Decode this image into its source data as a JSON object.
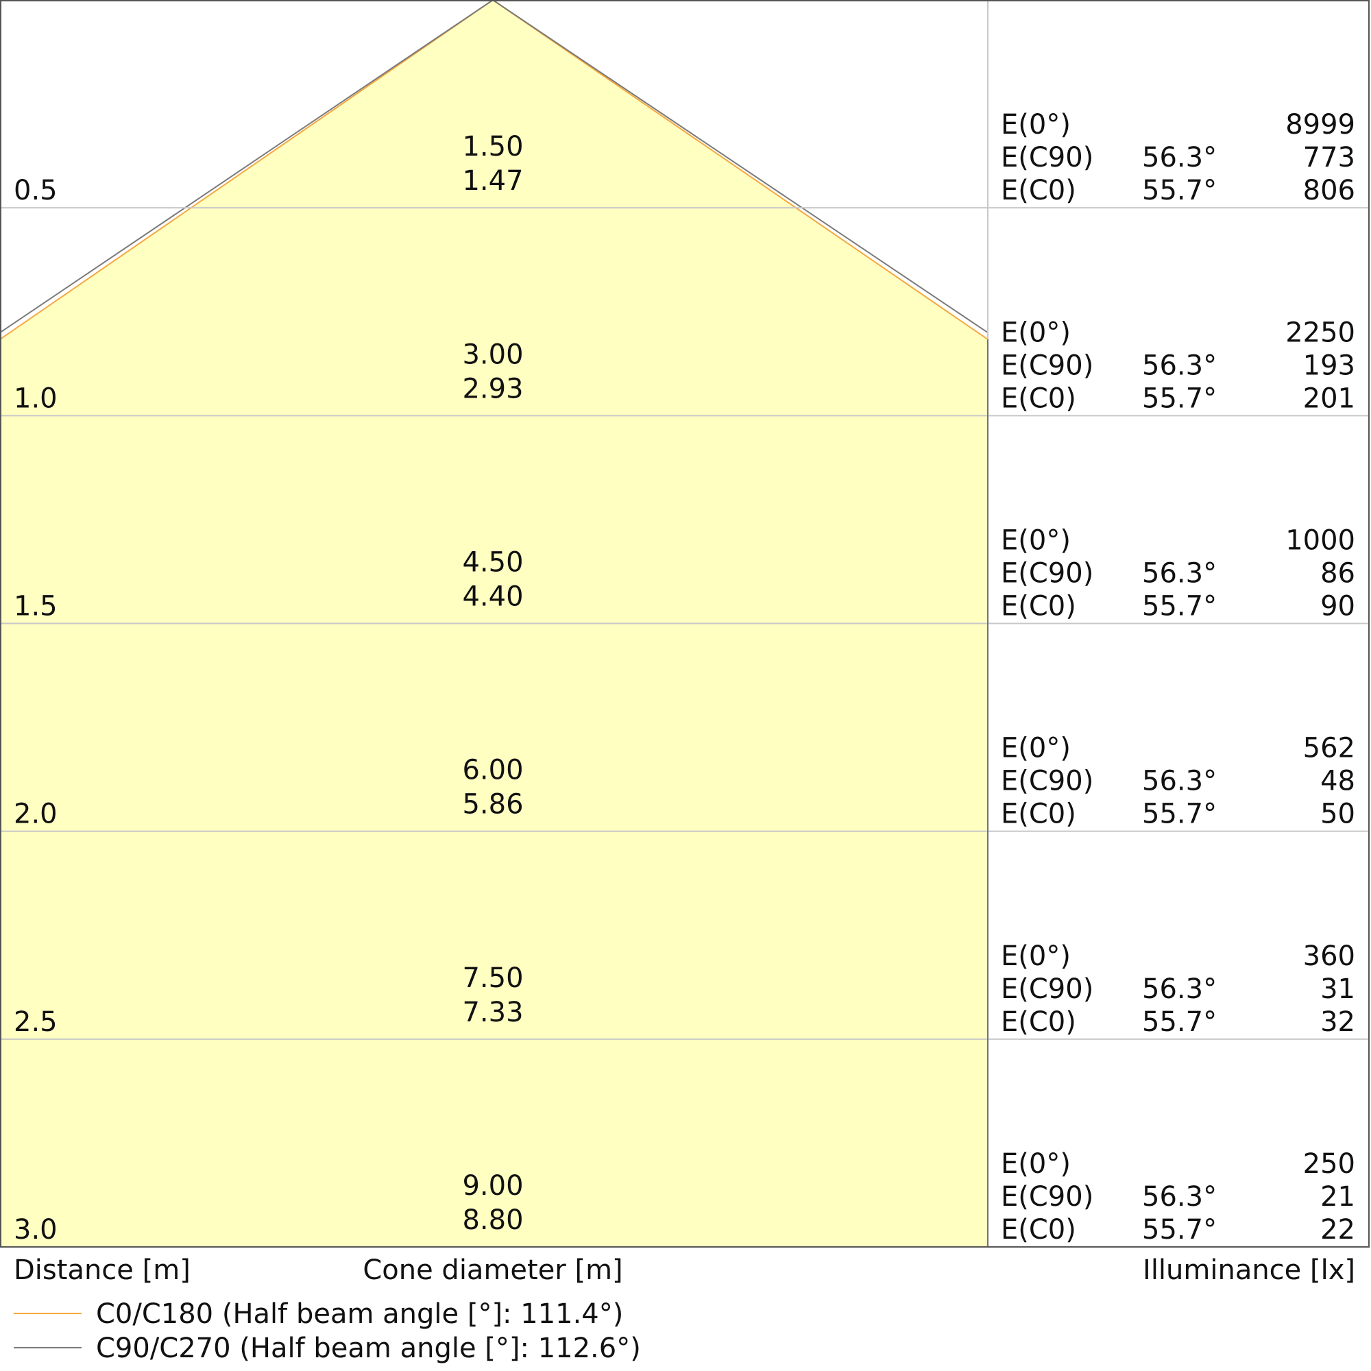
{
  "chart_data": {
    "type": "cone-diagram",
    "xlabel_left": "Distance [m]",
    "xlabel_center": "Cone diameter [m]",
    "xlabel_right": "Illuminance [lx]",
    "colors": {
      "fill": "#ffffc2",
      "c0": "#f5a840",
      "c90": "#7a7a7a",
      "grid": "#c8c8c8",
      "border": "#555555"
    },
    "legend": [
      {
        "name": "C0/C180 (Half beam angle [°]: 111.4°)",
        "color": "#f5a840"
      },
      {
        "name": "C90/C270 (Half beam angle [°]: 112.6°)",
        "color": "#7a7a7a"
      }
    ],
    "label_e0": "E(0°)",
    "label_ec90": "E(C90)",
    "label_ec0": "E(C0)",
    "angle_c90": "56.3°",
    "angle_c0": "55.7°",
    "rows": [
      {
        "distance": "0.5",
        "diam_c90": "1.50",
        "diam_c0": "1.47",
        "e0": "8999",
        "ec90": "773",
        "ec0": "806"
      },
      {
        "distance": "1.0",
        "diam_c90": "3.00",
        "diam_c0": "2.93",
        "e0": "2250",
        "ec90": "193",
        "ec0": "201"
      },
      {
        "distance": "1.5",
        "diam_c90": "4.50",
        "diam_c0": "4.40",
        "e0": "1000",
        "ec90": "86",
        "ec0": "90"
      },
      {
        "distance": "2.0",
        "diam_c90": "6.00",
        "diam_c0": "5.86",
        "e0": "562",
        "ec90": "48",
        "ec0": "50"
      },
      {
        "distance": "2.5",
        "diam_c90": "7.50",
        "diam_c0": "7.33",
        "e0": "360",
        "ec90": "31",
        "ec0": "32"
      },
      {
        "distance": "3.0",
        "diam_c90": "9.00",
        "diam_c0": "8.80",
        "e0": "250",
        "ec90": "21",
        "ec0": "22"
      }
    ]
  }
}
